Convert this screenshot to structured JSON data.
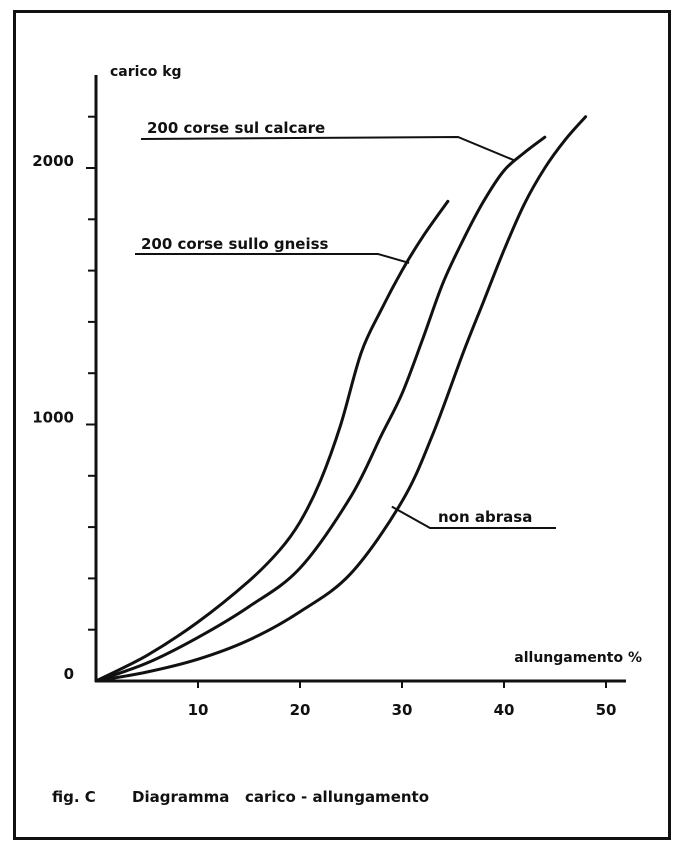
{
  "caption": {
    "fig": "fig. C",
    "title": "Diagramma   carico - allungamento"
  },
  "chart_data": {
    "type": "line",
    "xlabel": "allungamento %",
    "ylabel": "carico kg",
    "xlim": [
      0,
      52
    ],
    "ylim": [
      0,
      2280
    ],
    "x_ticks": [
      10,
      20,
      30,
      40,
      50
    ],
    "x_tick_labels": [
      "10",
      "20",
      "30",
      "40",
      "50"
    ],
    "y_ticks": [
      0,
      1000,
      2000
    ],
    "y_tick_labels": [
      "0",
      "1000",
      "2000"
    ],
    "y_minor_ticks": [
      200,
      400,
      600,
      800,
      1200,
      1400,
      1600,
      1800,
      2200
    ],
    "grid": false,
    "legend": "none",
    "series": [
      {
        "name": "200 corse sullo gneiss",
        "x": [
          0,
          5,
          10,
          15,
          18,
          20,
          22,
          24,
          26,
          28,
          30,
          32,
          34.5
        ],
        "y": [
          0,
          100,
          230,
          390,
          510,
          620,
          780,
          1000,
          1280,
          1450,
          1600,
          1730,
          1870
        ]
      },
      {
        "name": "200 corse sul calcare",
        "x": [
          0,
          5,
          10,
          15,
          20,
          25,
          28,
          30,
          32,
          34,
          36,
          38,
          40,
          42,
          44
        ],
        "y": [
          0,
          70,
          170,
          290,
          440,
          720,
          960,
          1120,
          1330,
          1550,
          1720,
          1870,
          1990,
          2060,
          2120
        ]
      },
      {
        "name": "non abrasa",
        "x": [
          0,
          5,
          10,
          15,
          20,
          25,
          30,
          33,
          36,
          38,
          40,
          42,
          44,
          46,
          48
        ],
        "y": [
          0,
          35,
          85,
          160,
          270,
          420,
          700,
          960,
          1280,
          1480,
          1680,
          1860,
          2000,
          2110,
          2200
        ]
      }
    ],
    "annotations": [
      {
        "text": "200 corse sul calcare",
        "series": 1
      },
      {
        "text": "200 corse sullo gneiss",
        "series": 0
      },
      {
        "text": "non abrasa",
        "series": 2
      }
    ]
  }
}
